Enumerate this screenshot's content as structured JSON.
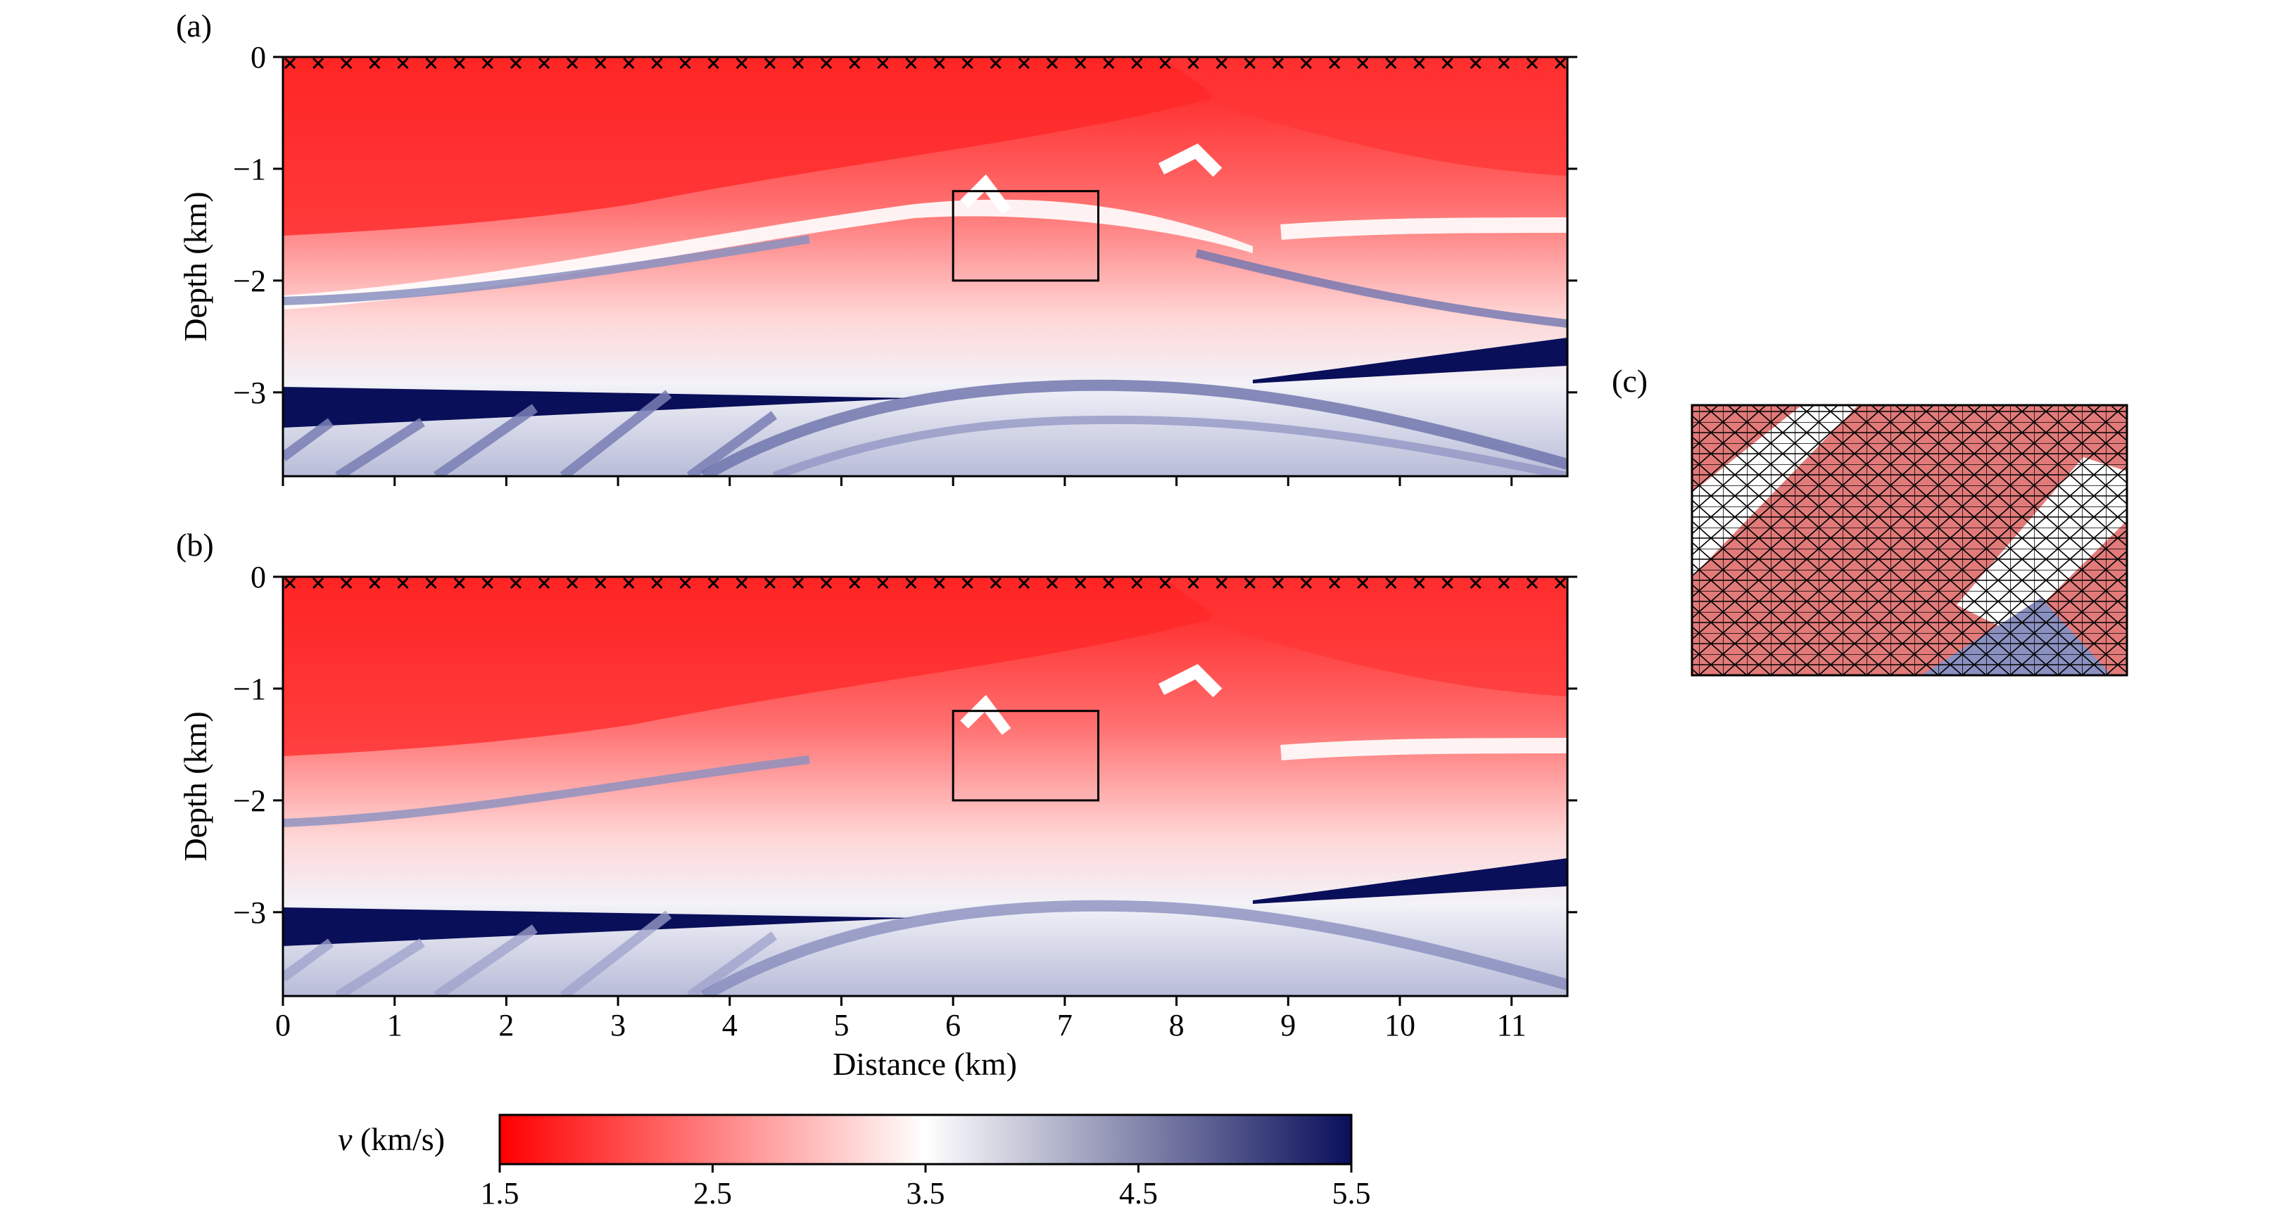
{
  "colors": {
    "low": "#ff0000",
    "mid": "#ffffff",
    "high": "#0a0f5a",
    "frame": "#000000"
  },
  "chart_data": [
    {
      "type": "heatmap",
      "panel_label": "(a)",
      "title": "",
      "xlabel": "",
      "ylabel": "Depth (km)",
      "xlim": [
        0,
        11.5
      ],
      "ylim": [
        -3.75,
        0
      ],
      "x_ticks": [
        0,
        1,
        2,
        3,
        4,
        5,
        6,
        7,
        8,
        9,
        10,
        11
      ],
      "x_tick_labels_shown": false,
      "y_ticks": [
        0,
        -1,
        -2,
        -3
      ],
      "y_tick_labels": [
        "0",
        "−1",
        "−2",
        "−3"
      ],
      "receivers_marker": "x",
      "receiver_count": 46,
      "zoom_box": {
        "x": [
          6.0,
          7.3
        ],
        "y": [
          -2.0,
          -1.2
        ]
      },
      "variable": "velocity (km/s)"
    },
    {
      "type": "heatmap",
      "panel_label": "(b)",
      "title": "",
      "xlabel": "Distance (km)",
      "ylabel": "Depth (km)",
      "xlim": [
        0,
        11.5
      ],
      "ylim": [
        -3.75,
        0
      ],
      "x_ticks": [
        0,
        1,
        2,
        3,
        4,
        5,
        6,
        7,
        8,
        9,
        10,
        11
      ],
      "x_tick_labels": [
        "0",
        "1",
        "2",
        "3",
        "4",
        "5",
        "6",
        "7",
        "8",
        "9",
        "10",
        "11"
      ],
      "y_ticks": [
        0,
        -1,
        -2,
        -3
      ],
      "y_tick_labels": [
        "0",
        "−1",
        "−2",
        "−3"
      ],
      "receivers_marker": "x",
      "receiver_count": 46,
      "zoom_box": {
        "x": [
          6.0,
          7.3
        ],
        "y": [
          -2.0,
          -1.2
        ]
      },
      "variable": "velocity (km/s)"
    },
    {
      "type": "heatmap",
      "panel_label": "(c)",
      "title": "",
      "description_kind": "triangular-mesh-zoom",
      "variable": "velocity (km/s)"
    }
  ],
  "colorbar": {
    "label_var": "v",
    "label_unit": " (km/s)",
    "range": [
      1.5,
      5.5
    ],
    "ticks": [
      1.5,
      2.5,
      3.5,
      4.5,
      5.5
    ],
    "tick_labels": [
      "1.5",
      "2.5",
      "3.5",
      "4.5",
      "5.5"
    ]
  }
}
